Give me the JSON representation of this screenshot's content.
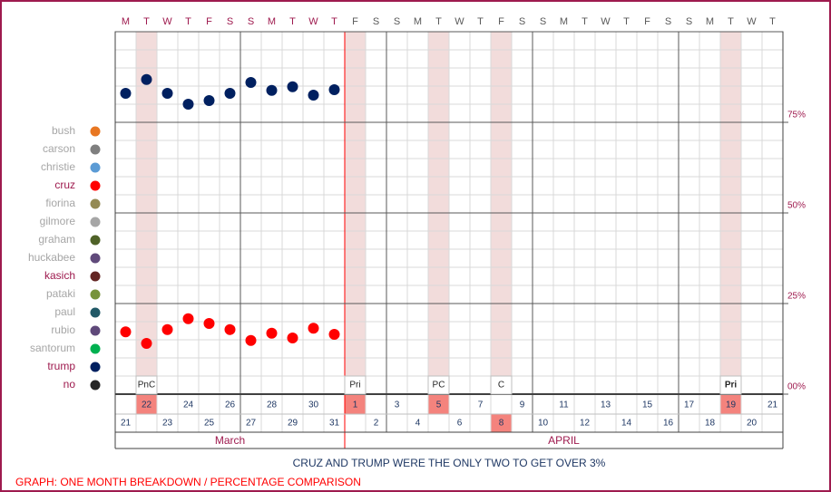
{
  "chart_data": {
    "type": "scatter",
    "title": "CRUZ AND TRUMP WERE THE ONLY TWO TO GET OVER 3%",
    "footer": "GRAPH: ONE MONTH BREAKDOWN / PERCENTAGE COMPARISON",
    "weekdays": [
      "M",
      "T",
      "W",
      "T",
      "F",
      "S",
      "S",
      "M",
      "T",
      "W",
      "T",
      "F",
      "S",
      "S",
      "M",
      "T",
      "W",
      "T",
      "F",
      "S",
      "S",
      "M",
      "T",
      "W",
      "T",
      "F",
      "S",
      "S",
      "M",
      "T",
      "W",
      "T"
    ],
    "categories": [
      "21",
      "22",
      "23",
      "24",
      "25",
      "26",
      "27",
      "28",
      "29",
      "30",
      "31",
      "1",
      "2",
      "3",
      "4",
      "5",
      "6",
      "7",
      "8",
      "9",
      "10",
      "11",
      "12",
      "13",
      "14",
      "15",
      "16",
      "17",
      "18",
      "19",
      "20",
      "21"
    ],
    "months": [
      {
        "name": "March",
        "start": 0,
        "end": 10
      },
      {
        "name": "APRIL",
        "start": 11,
        "end": 31
      }
    ],
    "highlighted": [
      1,
      11,
      15,
      18,
      29
    ],
    "events": [
      {
        "index": 1,
        "label": "PnC"
      },
      {
        "index": 11,
        "label": "Pri"
      },
      {
        "index": 15,
        "label": "PC"
      },
      {
        "index": 18,
        "label": "C"
      },
      {
        "index": 29,
        "label": "Pri",
        "bold": true
      }
    ],
    "ylim": [
      0,
      100
    ],
    "yticks": [
      {
        "value": 0,
        "label": "00%"
      },
      {
        "value": 25,
        "label": "25%"
      },
      {
        "value": 50,
        "label": "50%"
      },
      {
        "value": 75,
        "label": "75%"
      }
    ],
    "minor_ystep": 5,
    "series": [
      {
        "name": "bush",
        "color": "#e87722",
        "label_color": "#a6a6a6"
      },
      {
        "name": "carson",
        "color": "#7f7f7f",
        "label_color": "#a6a6a6"
      },
      {
        "name": "christie",
        "color": "#5b9bd5",
        "label_color": "#a6a6a6"
      },
      {
        "name": "cruz",
        "color": "#ff0000",
        "label_color": "#9e1a4e",
        "values": [
          17.2,
          14,
          17.8,
          20.8,
          19.5,
          17.8,
          14.8,
          16.8,
          15.5,
          18.2,
          16.5,
          null,
          null,
          null,
          null,
          null,
          null,
          null,
          null,
          null,
          null,
          null,
          null,
          null,
          null,
          null,
          null,
          null,
          null,
          null,
          null,
          null
        ]
      },
      {
        "name": "fiorina",
        "color": "#948a54",
        "label_color": "#a6a6a6"
      },
      {
        "name": "gilmore",
        "color": "#a6a6a6",
        "label_color": "#a6a6a6"
      },
      {
        "name": "graham",
        "color": "#4f6228",
        "label_color": "#a6a6a6"
      },
      {
        "name": "huckabee",
        "color": "#604a7b",
        "label_color": "#a6a6a6"
      },
      {
        "name": "kasich",
        "color": "#632523",
        "label_color": "#9e1a4e"
      },
      {
        "name": "pataki",
        "color": "#77933c",
        "label_color": "#a6a6a6"
      },
      {
        "name": "paul",
        "color": "#215967",
        "label_color": "#a6a6a6"
      },
      {
        "name": "rubio",
        "color": "#5f497a",
        "label_color": "#a6a6a6"
      },
      {
        "name": "santorum",
        "color": "#00b050",
        "label_color": "#a6a6a6"
      },
      {
        "name": "trump",
        "color": "#002060",
        "label_color": "#9e1a4e",
        "values": [
          83,
          86.8,
          83,
          80,
          81,
          83,
          86,
          83.8,
          84.8,
          82.5,
          84,
          null,
          null,
          null,
          null,
          null,
          null,
          null,
          null,
          null,
          null,
          null,
          null,
          null,
          null,
          null,
          null,
          null,
          null,
          null,
          null,
          null
        ]
      },
      {
        "name": "no",
        "color": "#262626",
        "label_color": "#9e1a4e"
      }
    ]
  }
}
